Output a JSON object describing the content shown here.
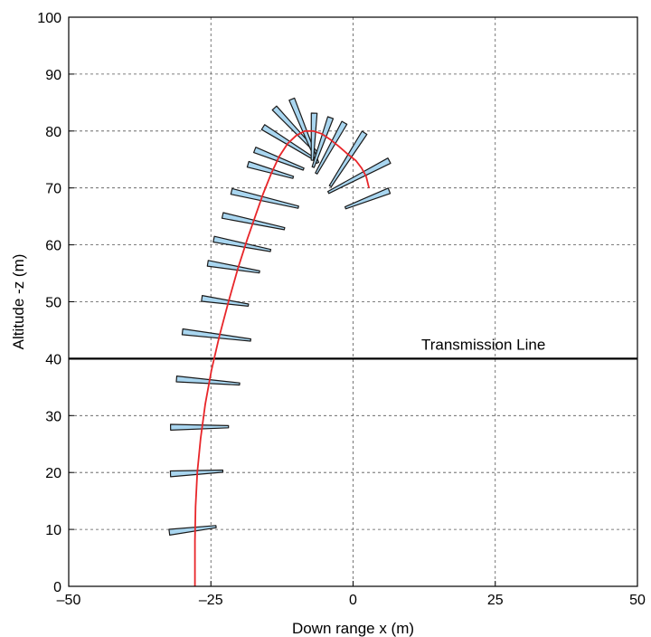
{
  "chart_data": {
    "type": "line",
    "title": "",
    "xlabel": "Down range x (m)",
    "ylabel": "Altitude -z (m)",
    "xlim": [
      -50,
      50
    ],
    "ylim": [
      0,
      100
    ],
    "grid": true,
    "xticks": [
      -50,
      -25,
      0,
      25,
      50
    ],
    "xtick_labels": [
      "–50",
      "–25",
      "0",
      "25",
      "50"
    ],
    "yticks": [
      0,
      10,
      20,
      30,
      40,
      50,
      60,
      70,
      80,
      90,
      100
    ],
    "ytick_labels": [
      "0",
      "10",
      "20",
      "30",
      "40",
      "50",
      "60",
      "70",
      "80",
      "90",
      "100"
    ],
    "colors": {
      "trajectory": "#e8262a",
      "aircraft_fill": "#a9d6f0",
      "aircraft_stroke": "#1a1a1a",
      "line": "#000000"
    },
    "trajectory": {
      "x": [
        -27.8,
        -27.8,
        -27.7,
        -27.4,
        -26.8,
        -26.0,
        -24.9,
        -23.5,
        -21.9,
        -20.2,
        -18.6,
        -17.2,
        -15.8,
        -14.4,
        -13.0,
        -11.5,
        -10.0,
        -8.5,
        -7.0,
        -5.5,
        -4.0,
        -2.5,
        -1.0,
        0.5,
        1.5,
        2.3,
        2.8
      ],
      "y": [
        0,
        8,
        14,
        20,
        26,
        32,
        38,
        44,
        50,
        56,
        61,
        65,
        69,
        72.5,
        75.5,
        77.8,
        79.2,
        80.0,
        80.0,
        79.5,
        78.5,
        77.3,
        76.0,
        74.8,
        73.5,
        72.0,
        70.0
      ]
    },
    "annotations": [
      {
        "text": "Transmission Line",
        "y": 40,
        "x": 12
      }
    ],
    "reference_line": {
      "y": 40
    },
    "aircraft_snapshots": [
      {
        "cx": -28.2,
        "cy": 10
      },
      {
        "cx": -27.5,
        "cy": 20
      },
      {
        "cx": -27.0,
        "cy": 28
      },
      {
        "cx": -25.5,
        "cy": 36
      },
      {
        "cx": -24.0,
        "cy": 44
      },
      {
        "cx": -22.5,
        "cy": 50
      },
      {
        "cx": -21.0,
        "cy": 56
      },
      {
        "cx": -19.5,
        "cy": 60
      },
      {
        "cx": -17.5,
        "cy": 64
      },
      {
        "cx": -15.5,
        "cy": 68
      },
      {
        "cx": -14.5,
        "cy": 73
      },
      {
        "cx": -13.0,
        "cy": 75
      },
      {
        "cx": -11.5,
        "cy": 78
      },
      {
        "cx": -10.0,
        "cy": 80
      },
      {
        "cx": -8.5,
        "cy": 80
      },
      {
        "cx": -7.0,
        "cy": 79
      },
      {
        "cx": -5.5,
        "cy": 78
      },
      {
        "cx": -4.0,
        "cy": 77
      },
      {
        "cx": -1.0,
        "cy": 75
      },
      {
        "cx": 1.0,
        "cy": 72
      },
      {
        "cx": 2.5,
        "cy": 68
      }
    ]
  }
}
